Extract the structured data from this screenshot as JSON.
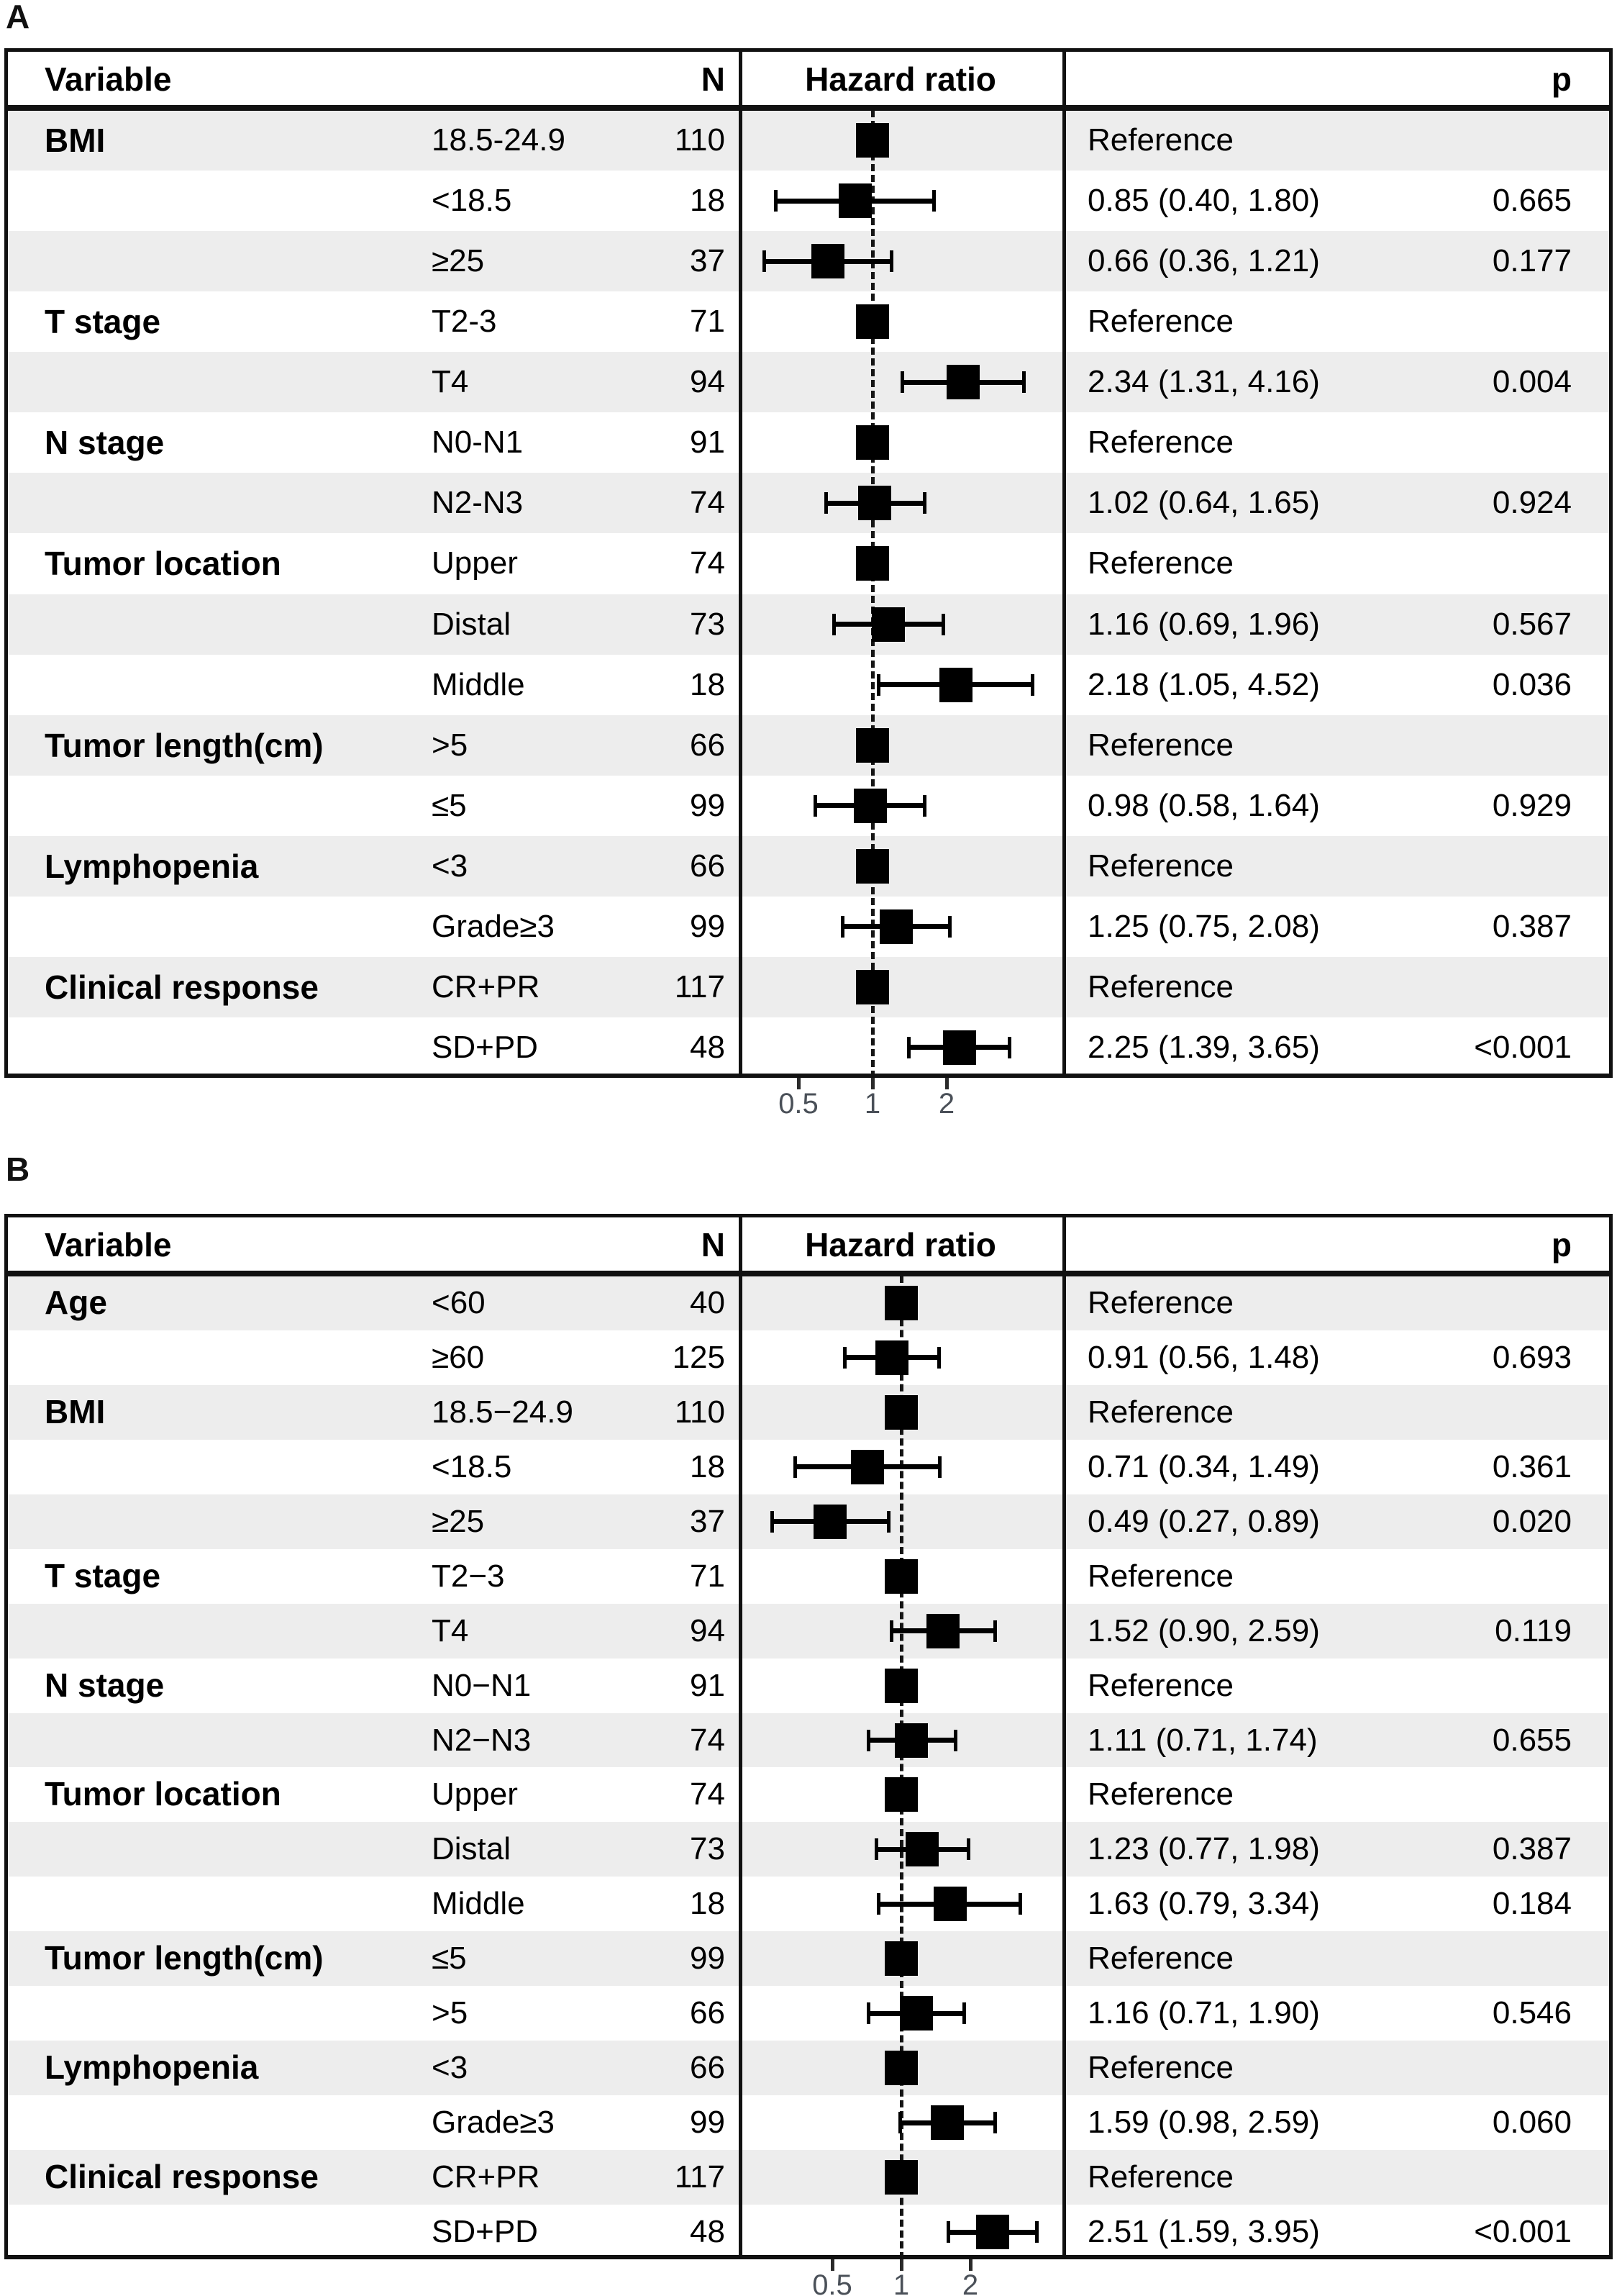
{
  "figure": {
    "panel_labels": [
      "A",
      "B"
    ]
  },
  "header_labels": {
    "variable": "Variable",
    "n": "N",
    "hazard_ratio": "Hazard ratio",
    "p": "p"
  },
  "colors": {
    "row_shade": "#ededed",
    "line": "#111111",
    "marker": "#000000",
    "axis_label": "#4a5058"
  },
  "chart_data": [
    {
      "type": "scatter",
      "subtype": "forest-plot",
      "panel": "A",
      "xscale": "log",
      "xticks": [
        "0.5",
        "1",
        "2"
      ],
      "dashed_reference_line": 1,
      "column_headers": [
        "Variable",
        "N",
        "Hazard ratio",
        "p"
      ],
      "legend_position": "none",
      "grid": false,
      "rows": [
        {
          "variable": "BMI",
          "group": "18.5-24.9",
          "n": "110",
          "hr": 1,
          "lo": null,
          "hi": null,
          "estimate": "Reference",
          "p": "",
          "reference": true
        },
        {
          "variable": "",
          "group": "<18.5",
          "n": "18",
          "hr": 0.85,
          "lo": 0.4,
          "hi": 1.8,
          "estimate": "0.85 (0.40, 1.80)",
          "p": "0.665",
          "reference": false
        },
        {
          "variable": "",
          "group": "≥25",
          "n": "37",
          "hr": 0.66,
          "lo": 0.36,
          "hi": 1.21,
          "estimate": "0.66 (0.36, 1.21)",
          "p": "0.177",
          "reference": false
        },
        {
          "variable": "T stage",
          "group": "T2-3",
          "n": "71",
          "hr": 1,
          "lo": null,
          "hi": null,
          "estimate": "Reference",
          "p": "",
          "reference": true
        },
        {
          "variable": "",
          "group": "T4",
          "n": "94",
          "hr": 2.34,
          "lo": 1.31,
          "hi": 4.16,
          "estimate": "2.34 (1.31, 4.16)",
          "p": "0.004",
          "reference": false
        },
        {
          "variable": "N stage",
          "group": "N0-N1",
          "n": "91",
          "hr": 1,
          "lo": null,
          "hi": null,
          "estimate": "Reference",
          "p": "",
          "reference": true
        },
        {
          "variable": "",
          "group": "N2-N3",
          "n": "74",
          "hr": 1.02,
          "lo": 0.64,
          "hi": 1.65,
          "estimate": "1.02 (0.64, 1.65)",
          "p": "0.924",
          "reference": false
        },
        {
          "variable": "Tumor location",
          "group": "Upper",
          "n": "74",
          "hr": 1,
          "lo": null,
          "hi": null,
          "estimate": "Reference",
          "p": "",
          "reference": true
        },
        {
          "variable": "",
          "group": "Distal",
          "n": "73",
          "hr": 1.16,
          "lo": 0.69,
          "hi": 1.96,
          "estimate": "1.16 (0.69, 1.96)",
          "p": "0.567",
          "reference": false
        },
        {
          "variable": "",
          "group": "Middle",
          "n": "18",
          "hr": 2.18,
          "lo": 1.05,
          "hi": 4.52,
          "estimate": "2.18 (1.05, 4.52)",
          "p": "0.036",
          "reference": false
        },
        {
          "variable": "Tumor length(cm)",
          "group": ">5",
          "n": "66",
          "hr": 1,
          "lo": null,
          "hi": null,
          "estimate": "Reference",
          "p": "",
          "reference": true
        },
        {
          "variable": "",
          "group": "≤5",
          "n": "99",
          "hr": 0.98,
          "lo": 0.58,
          "hi": 1.64,
          "estimate": "0.98 (0.58, 1.64)",
          "p": "0.929",
          "reference": false
        },
        {
          "variable": "Lymphopenia",
          "group": "<3",
          "n": "66",
          "hr": 1,
          "lo": null,
          "hi": null,
          "estimate": "Reference",
          "p": "",
          "reference": true
        },
        {
          "variable": "",
          "group": "Grade≥3",
          "n": "99",
          "hr": 1.25,
          "lo": 0.75,
          "hi": 2.08,
          "estimate": "1.25 (0.75, 2.08)",
          "p": "0.387",
          "reference": false
        },
        {
          "variable": "Clinical response",
          "group": "CR+PR",
          "n": "117",
          "hr": 1,
          "lo": null,
          "hi": null,
          "estimate": "Reference",
          "p": "",
          "reference": true
        },
        {
          "variable": "",
          "group": "SD+PD",
          "n": "48",
          "hr": 2.25,
          "lo": 1.39,
          "hi": 3.65,
          "estimate": "2.25 (1.39, 3.65)",
          "p": "<0.001",
          "reference": false
        }
      ]
    },
    {
      "type": "scatter",
      "subtype": "forest-plot",
      "panel": "B",
      "xscale": "log",
      "xticks": [
        "0.5",
        "1",
        "2"
      ],
      "dashed_reference_line": 1,
      "column_headers": [
        "Variable",
        "N",
        "Hazard ratio",
        "p"
      ],
      "legend_position": "none",
      "grid": false,
      "rows": [
        {
          "variable": "Age",
          "group": "<60",
          "n": "40",
          "hr": 1,
          "lo": null,
          "hi": null,
          "estimate": "Reference",
          "p": "",
          "reference": true
        },
        {
          "variable": "",
          "group": "≥60",
          "n": "125",
          "hr": 0.91,
          "lo": 0.56,
          "hi": 1.48,
          "estimate": "0.91 (0.56, 1.48)",
          "p": "0.693",
          "reference": false
        },
        {
          "variable": "BMI",
          "group": "18.5−24.9",
          "n": "110",
          "hr": 1,
          "lo": null,
          "hi": null,
          "estimate": "Reference",
          "p": "",
          "reference": true
        },
        {
          "variable": "",
          "group": "<18.5",
          "n": "18",
          "hr": 0.71,
          "lo": 0.34,
          "hi": 1.49,
          "estimate": "0.71 (0.34, 1.49)",
          "p": "0.361",
          "reference": false
        },
        {
          "variable": "",
          "group": "≥25",
          "n": "37",
          "hr": 0.49,
          "lo": 0.27,
          "hi": 0.89,
          "estimate": "0.49 (0.27, 0.89)",
          "p": "0.020",
          "reference": false
        },
        {
          "variable": "T stage",
          "group": "T2−3",
          "n": "71",
          "hr": 1,
          "lo": null,
          "hi": null,
          "estimate": "Reference",
          "p": "",
          "reference": true
        },
        {
          "variable": "",
          "group": "T4",
          "n": "94",
          "hr": 1.52,
          "lo": 0.9,
          "hi": 2.59,
          "estimate": "1.52 (0.90, 2.59)",
          "p": "0.119",
          "reference": false
        },
        {
          "variable": "N stage",
          "group": "N0−N1",
          "n": "91",
          "hr": 1,
          "lo": null,
          "hi": null,
          "estimate": "Reference",
          "p": "",
          "reference": true
        },
        {
          "variable": "",
          "group": "N2−N3",
          "n": "74",
          "hr": 1.11,
          "lo": 0.71,
          "hi": 1.74,
          "estimate": "1.11 (0.71, 1.74)",
          "p": "0.655",
          "reference": false
        },
        {
          "variable": "Tumor location",
          "group": "Upper",
          "n": "74",
          "hr": 1,
          "lo": null,
          "hi": null,
          "estimate": "Reference",
          "p": "",
          "reference": true
        },
        {
          "variable": "",
          "group": "Distal",
          "n": "73",
          "hr": 1.23,
          "lo": 0.77,
          "hi": 1.98,
          "estimate": "1.23 (0.77, 1.98)",
          "p": "0.387",
          "reference": false
        },
        {
          "variable": "",
          "group": "Middle",
          "n": "18",
          "hr": 1.63,
          "lo": 0.79,
          "hi": 3.34,
          "estimate": "1.63 (0.79, 3.34)",
          "p": "0.184",
          "reference": false
        },
        {
          "variable": "Tumor length(cm)",
          "group": "≤5",
          "n": "99",
          "hr": 1,
          "lo": null,
          "hi": null,
          "estimate": "Reference",
          "p": "",
          "reference": true
        },
        {
          "variable": "",
          "group": ">5",
          "n": "66",
          "hr": 1.16,
          "lo": 0.71,
          "hi": 1.9,
          "estimate": "1.16 (0.71, 1.90)",
          "p": "0.546",
          "reference": false
        },
        {
          "variable": "Lymphopenia",
          "group": "<3",
          "n": "66",
          "hr": 1,
          "lo": null,
          "hi": null,
          "estimate": "Reference",
          "p": "",
          "reference": true
        },
        {
          "variable": "",
          "group": "Grade≥3",
          "n": "99",
          "hr": 1.59,
          "lo": 0.98,
          "hi": 2.59,
          "estimate": "1.59 (0.98, 2.59)",
          "p": "0.060",
          "reference": false
        },
        {
          "variable": "Clinical response",
          "group": "CR+PR",
          "n": "117",
          "hr": 1,
          "lo": null,
          "hi": null,
          "estimate": "Reference",
          "p": "",
          "reference": true
        },
        {
          "variable": "",
          "group": "SD+PD",
          "n": "48",
          "hr": 2.51,
          "lo": 1.59,
          "hi": 3.95,
          "estimate": "2.51 (1.59, 3.95)",
          "p": "<0.001",
          "reference": false
        }
      ]
    }
  ]
}
